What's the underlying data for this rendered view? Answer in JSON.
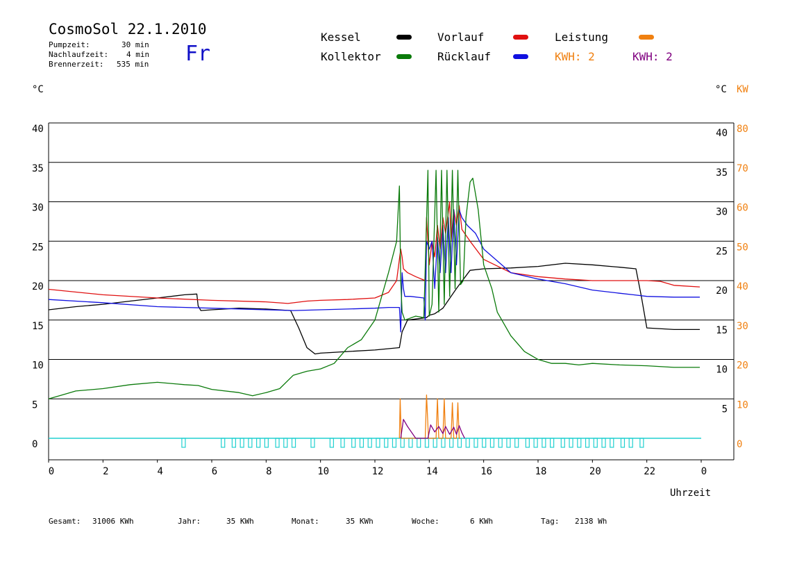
{
  "header": {
    "title": "CosmoSol 22.1.2010",
    "pump_label": "Pumpzeit:",
    "pump_value": "30 min",
    "nachlauf_label": "Nachlaufzeit:",
    "nachlauf_value": "4 min",
    "brenner_label": "Brennerzeit:",
    "brenner_value": "535 min",
    "day": "Fr"
  },
  "legend": {
    "kessel": "Kessel",
    "kollektor": "Kollektor",
    "vorlauf": "Vorlauf",
    "ruecklauf": "Rücklauf",
    "leistung": "Leistung",
    "kwh1": "KWH: 2",
    "kwh2": "KWH: 2"
  },
  "colors": {
    "kessel": "#000000",
    "kollektor": "#0a7a0a",
    "vorlauf": "#e01010",
    "ruecklauf": "#1010e0",
    "leistung": "#f08010",
    "kwh2": "#800080",
    "pump": "#20d0d0",
    "day": "#1010c8"
  },
  "axes": {
    "left_unit": "°C",
    "right_unit": "°C",
    "right_unit2": "KW",
    "x_title": "Uhrzeit"
  },
  "footer": {
    "gesamt_label": "Gesamt:",
    "gesamt_value": "31006 KWh",
    "jahr_label": "Jahr:",
    "jahr_value": "35 KWh",
    "monat_label": "Monat:",
    "monat_value": "35 KWh",
    "woche_label": "Woche:",
    "woche_value": "6 KWh",
    "tag_label": "Tag:",
    "tag_value": "2138 Wh"
  },
  "chart_data": {
    "type": "line",
    "xlim": [
      0,
      24
    ],
    "ylim": [
      0,
      40
    ],
    "y2lim": [
      0,
      80
    ],
    "x_ticks": [
      "0",
      "2",
      "4",
      "6",
      "8",
      "10",
      "12",
      "14",
      "16",
      "18",
      "20",
      "22",
      "0"
    ],
    "y_ticks": [
      "0",
      "5",
      "10",
      "15",
      "20",
      "25",
      "30",
      "35",
      "40"
    ],
    "y_ticks_right": [
      "5",
      "10",
      "15",
      "20",
      "25",
      "30",
      "35",
      "40"
    ],
    "y2_ticks": [
      "0",
      "10",
      "20",
      "30",
      "40",
      "50",
      "60",
      "70",
      "80"
    ],
    "xlabel": "Uhrzeit",
    "series": [
      {
        "name": "Kessel",
        "color": "#000000",
        "x": [
          0,
          1,
          2,
          3,
          4,
          5,
          5.45,
          5.5,
          5.6,
          6,
          7,
          8,
          8.9,
          9.2,
          9.5,
          9.8,
          10,
          11,
          12,
          12.9,
          13,
          13.2,
          13.9,
          14,
          14.2,
          14.5,
          15,
          15.5,
          16,
          17,
          18,
          19,
          20,
          21,
          21.6,
          21.8,
          22,
          23,
          23.95
        ],
        "y": [
          16.3,
          16.7,
          17,
          17.4,
          17.8,
          18.2,
          18.3,
          16.8,
          16.2,
          16.3,
          16.5,
          16.4,
          16.2,
          14,
          11.5,
          10.7,
          10.8,
          11,
          11.2,
          11.5,
          13.5,
          15,
          15.3,
          15.6,
          15.8,
          16.5,
          19,
          21.3,
          21.5,
          21.6,
          21.8,
          22.2,
          22,
          21.7,
          21.5,
          18,
          14,
          13.8,
          13.8
        ]
      },
      {
        "name": "Vorlauf",
        "color": "#e01010",
        "x": [
          0,
          2,
          4,
          6,
          8,
          8.8,
          9.5,
          10,
          11,
          12,
          12.5,
          12.8,
          12.95,
          13,
          13.05,
          13.2,
          13.5,
          13.85,
          13.9,
          14.0,
          14.1,
          14.2,
          14.3,
          14.4,
          14.5,
          14.6,
          14.75,
          14.8,
          14.9,
          15.0,
          15.1,
          15.2,
          15.5,
          16,
          17,
          18,
          19,
          20,
          21,
          22,
          22.5,
          23,
          23.95
        ],
        "y": [
          18.9,
          18.2,
          17.8,
          17.5,
          17.3,
          17.1,
          17.4,
          17.5,
          17.6,
          17.8,
          18.5,
          20,
          24,
          23,
          21.5,
          21,
          20.5,
          20,
          28,
          22,
          25,
          23,
          27,
          24,
          28,
          26,
          30,
          25,
          29,
          27,
          29.5,
          26.5,
          25,
          22.7,
          21,
          20.5,
          20.2,
          20,
          20,
          20,
          19.9,
          19.4,
          19.2
        ]
      },
      {
        "name": "Rücklauf",
        "color": "#1010e0",
        "x": [
          0,
          2,
          4,
          6,
          8,
          9,
          10,
          11,
          12,
          12.5,
          12.9,
          12.95,
          13,
          13.05,
          13.1,
          13.3,
          13.8,
          13.85,
          13.9,
          14.0,
          14.1,
          14.2,
          14.3,
          14.4,
          14.5,
          14.6,
          14.7,
          14.8,
          14.9,
          15.0,
          15.1,
          15.2,
          15.4,
          15.7,
          16,
          17,
          18,
          19,
          20,
          21,
          21.5,
          22,
          23,
          23.95
        ],
        "y": [
          17.6,
          17.2,
          16.7,
          16.5,
          16.3,
          16.2,
          16.3,
          16.4,
          16.5,
          16.6,
          16.6,
          13.5,
          21,
          19,
          18,
          18,
          17.8,
          15,
          25,
          24,
          25,
          19,
          25.5,
          21,
          27,
          21,
          28,
          21,
          29,
          22,
          29,
          28,
          27,
          26,
          24,
          21,
          20.2,
          19.6,
          18.8,
          18.4,
          18.2,
          18,
          17.9,
          17.9
        ]
      },
      {
        "name": "Kollektor",
        "color": "#0a7a0a",
        "x": [
          0,
          0.5,
          1,
          2,
          3,
          4,
          5,
          5.5,
          6,
          7,
          7.5,
          8,
          8.5,
          9,
          9.5,
          10,
          10.5,
          11,
          11.5,
          12,
          12.5,
          12.8,
          12.9,
          12.95,
          13,
          13.1,
          13.5,
          13.8,
          13.95,
          14.0,
          14.1,
          14.25,
          14.35,
          14.45,
          14.55,
          14.65,
          14.75,
          14.85,
          14.95,
          15.05,
          15.15,
          15.25,
          15.35,
          15.5,
          15.6,
          15.8,
          16,
          16.3,
          16.5,
          17,
          17.5,
          18,
          18.5,
          19,
          19.5,
          20,
          21,
          22,
          23,
          23.95
        ],
        "y": [
          5,
          5.5,
          6,
          6.3,
          6.8,
          7.1,
          6.8,
          6.7,
          6.2,
          5.8,
          5.4,
          5.8,
          6.3,
          8,
          8.5,
          8.8,
          9.5,
          11.5,
          12.5,
          15,
          21,
          25,
          32,
          20,
          16,
          15,
          15.5,
          15.3,
          34,
          15.5,
          17,
          34,
          16,
          34,
          17,
          34,
          18,
          34,
          19,
          34,
          19.5,
          20,
          28,
          32.5,
          33,
          29,
          22,
          19,
          16,
          13,
          11,
          10,
          9.5,
          9.5,
          9.3,
          9.5,
          9.3,
          9.2,
          9,
          9
        ]
      },
      {
        "name": "Leistung",
        "color": "#f08010",
        "x": [
          12.9,
          12.93,
          12.97,
          13.0,
          13.85,
          13.9,
          13.97,
          14.0,
          14.1,
          14.25,
          14.3,
          14.35,
          14.5,
          14.55,
          14.6,
          14.8,
          14.85,
          14.9,
          15.0,
          15.05,
          15.1,
          15.15
        ],
        "y": [
          0,
          5,
          0,
          0,
          0,
          5.5,
          0,
          0,
          0,
          0,
          5,
          0,
          0,
          5,
          0,
          0,
          4.5,
          0,
          0,
          4.5,
          0,
          0
        ]
      },
      {
        "name": "KWH",
        "color": "#800080",
        "x": [
          12.95,
          13.05,
          13.2,
          13.4,
          13.5,
          13.95,
          14.05,
          14.2,
          14.35,
          14.5,
          14.6,
          14.75,
          14.9,
          15.0,
          15.1,
          15.2,
          15.3
        ],
        "y": [
          0,
          2.4,
          1.5,
          0.5,
          0,
          0,
          1.7,
          0.8,
          1.5,
          0.6,
          1.5,
          0.5,
          1.4,
          0.5,
          1.6,
          0.7,
          0
        ]
      }
    ],
    "pump_marks": [
      4.9,
      6.35,
      6.75,
      7.05,
      7.35,
      7.65,
      7.95,
      8.35,
      8.65,
      8.95,
      9.65,
      10.35,
      10.75,
      11.15,
      11.45,
      11.75,
      12.05,
      12.35,
      12.65,
      12.95,
      13.25,
      13.55,
      13.85,
      14.15,
      14.45,
      14.75,
      15.05,
      15.35,
      15.65,
      15.95,
      16.25,
      16.55,
      16.85,
      17.15,
      17.55,
      17.85,
      18.15,
      18.45,
      18.85,
      19.15,
      19.45,
      19.75,
      20.05,
      20.35,
      20.65,
      21.05,
      21.35,
      21.75
    ]
  }
}
